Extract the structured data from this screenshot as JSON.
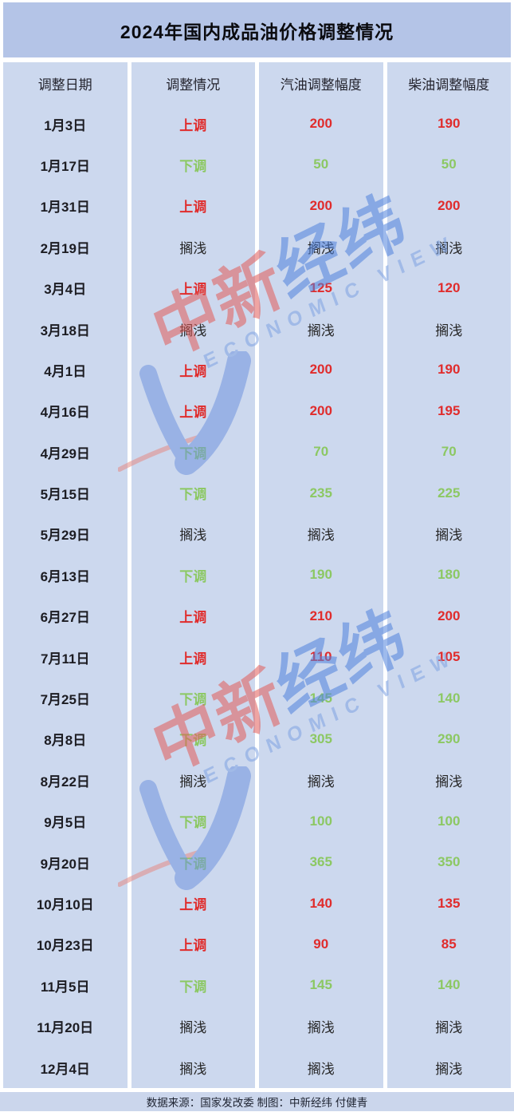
{
  "title": "2024年国内成品油价格调整情况",
  "table": {
    "headers": [
      "调整日期",
      "调整情况",
      "汽油调整幅度",
      "柴油调整幅度"
    ],
    "rows": [
      {
        "date": "1月3日",
        "status": "上调",
        "gasoline": "200",
        "diesel": "190",
        "direction": "up"
      },
      {
        "date": "1月17日",
        "status": "下调",
        "gasoline": "50",
        "diesel": "50",
        "direction": "down"
      },
      {
        "date": "1月31日",
        "status": "上调",
        "gasoline": "200",
        "diesel": "200",
        "direction": "up"
      },
      {
        "date": "2月19日",
        "status": "搁浅",
        "gasoline": "搁浅",
        "diesel": "搁浅",
        "direction": "flat"
      },
      {
        "date": "3月4日",
        "status": "上调",
        "gasoline": "125",
        "diesel": "120",
        "direction": "up"
      },
      {
        "date": "3月18日",
        "status": "搁浅",
        "gasoline": "搁浅",
        "diesel": "搁浅",
        "direction": "flat"
      },
      {
        "date": "4月1日",
        "status": "上调",
        "gasoline": "200",
        "diesel": "190",
        "direction": "up"
      },
      {
        "date": "4月16日",
        "status": "上调",
        "gasoline": "200",
        "diesel": "195",
        "direction": "up"
      },
      {
        "date": "4月29日",
        "status": "下调",
        "gasoline": "70",
        "diesel": "70",
        "direction": "down"
      },
      {
        "date": "5月15日",
        "status": "下调",
        "gasoline": "235",
        "diesel": "225",
        "direction": "down"
      },
      {
        "date": "5月29日",
        "status": "搁浅",
        "gasoline": "搁浅",
        "diesel": "搁浅",
        "direction": "flat"
      },
      {
        "date": "6月13日",
        "status": "下调",
        "gasoline": "190",
        "diesel": "180",
        "direction": "down"
      },
      {
        "date": "6月27日",
        "status": "上调",
        "gasoline": "210",
        "diesel": "200",
        "direction": "up"
      },
      {
        "date": "7月11日",
        "status": "上调",
        "gasoline": "110",
        "diesel": "105",
        "direction": "up"
      },
      {
        "date": "7月25日",
        "status": "下调",
        "gasoline": "145",
        "diesel": "140",
        "direction": "down"
      },
      {
        "date": "8月8日",
        "status": "下调",
        "gasoline": "305",
        "diesel": "290",
        "direction": "down"
      },
      {
        "date": "8月22日",
        "status": "搁浅",
        "gasoline": "搁浅",
        "diesel": "搁浅",
        "direction": "flat"
      },
      {
        "date": "9月5日",
        "status": "下调",
        "gasoline": "100",
        "diesel": "100",
        "direction": "down"
      },
      {
        "date": "9月20日",
        "status": "下调",
        "gasoline": "365",
        "diesel": "350",
        "direction": "down"
      },
      {
        "date": "10月10日",
        "status": "上调",
        "gasoline": "140",
        "diesel": "135",
        "direction": "up"
      },
      {
        "date": "10月23日",
        "status": "上调",
        "gasoline": "90",
        "diesel": "85",
        "direction": "up"
      },
      {
        "date": "11月5日",
        "status": "下调",
        "gasoline": "145",
        "diesel": "140",
        "direction": "down"
      },
      {
        "date": "11月20日",
        "status": "搁浅",
        "gasoline": "搁浅",
        "diesel": "搁浅",
        "direction": "flat"
      },
      {
        "date": "12月4日",
        "status": "搁浅",
        "gasoline": "搁浅",
        "diesel": "搁浅",
        "direction": "flat"
      }
    ]
  },
  "chart_data": {
    "type": "table",
    "title": "2024年国内成品油价格调整情况",
    "columns": [
      "调整日期",
      "调整情况",
      "汽油调整幅度",
      "柴油调整幅度"
    ],
    "categories": [
      "1月3日",
      "1月17日",
      "1月31日",
      "2月19日",
      "3月4日",
      "3月18日",
      "4月1日",
      "4月16日",
      "4月29日",
      "5月15日",
      "5月29日",
      "6月13日",
      "6月27日",
      "7月11日",
      "7月25日",
      "8月8日",
      "8月22日",
      "9月5日",
      "9月20日",
      "10月10日",
      "10月23日",
      "11月5日",
      "11月20日",
      "12月4日"
    ],
    "series": [
      {
        "name": "调整情况",
        "values": [
          "上调",
          "下调",
          "上调",
          "搁浅",
          "上调",
          "搁浅",
          "上调",
          "上调",
          "下调",
          "下调",
          "搁浅",
          "下调",
          "上调",
          "上调",
          "下调",
          "下调",
          "搁浅",
          "下调",
          "下调",
          "上调",
          "上调",
          "下调",
          "搁浅",
          "搁浅"
        ]
      },
      {
        "name": "汽油调整幅度",
        "values": [
          200,
          50,
          200,
          null,
          125,
          null,
          200,
          200,
          70,
          235,
          null,
          190,
          210,
          110,
          145,
          305,
          null,
          100,
          365,
          140,
          90,
          145,
          null,
          null
        ]
      },
      {
        "name": "柴油调整幅度",
        "values": [
          190,
          50,
          200,
          null,
          120,
          null,
          190,
          195,
          70,
          225,
          null,
          180,
          200,
          105,
          140,
          290,
          null,
          100,
          350,
          135,
          85,
          140,
          null,
          null
        ]
      }
    ],
    "legend_note": "上调=red, 下调=green, 搁浅=no change (dark)"
  },
  "watermark": {
    "cn_red": "中新",
    "cn_blue": "经纬",
    "en": "ECONOMIC VIEW"
  },
  "footer": "数据来源：国家发改委 制图：中新经纬 付健青",
  "colors": {
    "up_red": "#e02c2c",
    "down_green": "#8cc863",
    "neutral_dark": "#262626",
    "title_bg": "#b4c4e7",
    "cell_bg": "#ccd8ee",
    "footer_bg": "#cbd6ec",
    "watermark_red": "#e25c58",
    "watermark_blue": "#4f82dd"
  }
}
